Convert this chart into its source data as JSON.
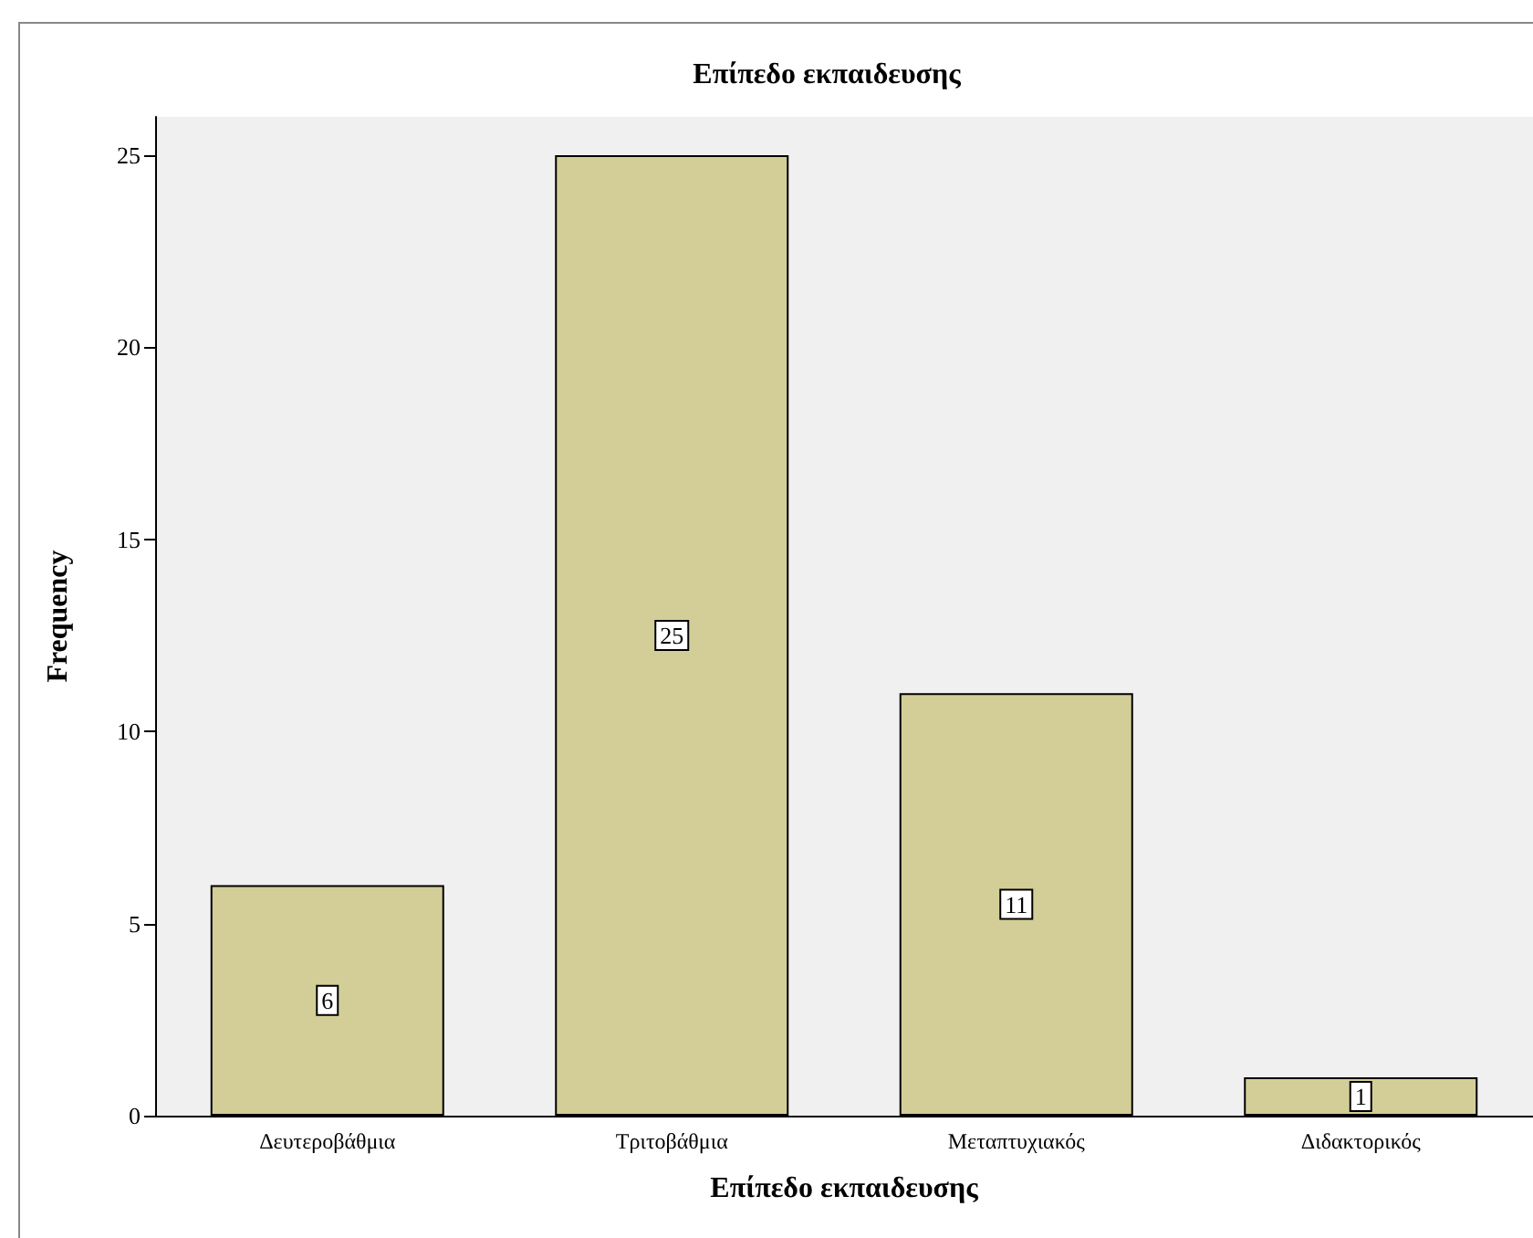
{
  "chart_data": {
    "type": "bar",
    "title": "Επίπεδο εκπαιδευσης",
    "xlabel": "Επίπεδο εκπαιδευσης",
    "ylabel": "Frequency",
    "categories": [
      "Δευτεροβάθμια",
      "Τριτοβάθμια",
      "Μεταπτυχιακός",
      "Διδακτορικός"
    ],
    "values": [
      6,
      25,
      11,
      1
    ],
    "color": "#d3ce97",
    "ylim": [
      0,
      26
    ],
    "yticks": [
      0,
      5,
      10,
      15,
      20,
      25
    ],
    "grid": false,
    "data_labels": true
  }
}
